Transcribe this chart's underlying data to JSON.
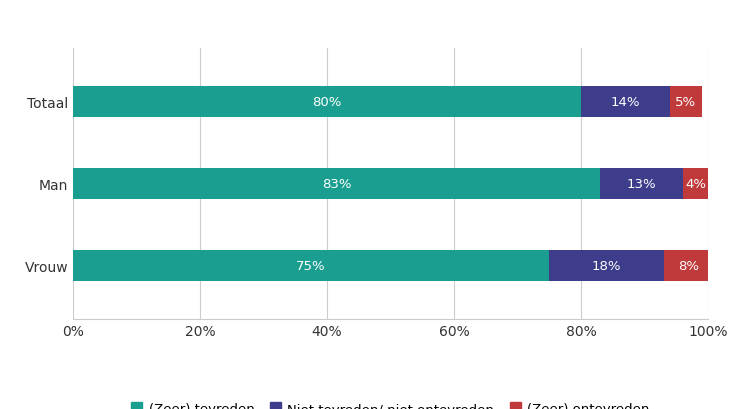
{
  "categories": [
    "Vrouw",
    "Man",
    "Totaal"
  ],
  "series": [
    {
      "label": "(Zeer) tevreden",
      "values": [
        75,
        83,
        80
      ],
      "color": "#1a9e8f"
    },
    {
      "label": "Niet tevreden/ niet ontevreden",
      "values": [
        18,
        13,
        14
      ],
      "color": "#3d3d8c"
    },
    {
      "label": "(Zeer) ontevreden",
      "values": [
        8,
        4,
        5
      ],
      "color": "#c0393b"
    }
  ],
  "xlim": [
    0,
    100
  ],
  "xtick_labels": [
    "0%",
    "20%",
    "40%",
    "60%",
    "80%",
    "100%"
  ],
  "xtick_values": [
    0,
    20,
    40,
    60,
    80,
    100
  ],
  "bar_height": 0.38,
  "label_fontsize": 9.5,
  "tick_fontsize": 10,
  "legend_fontsize": 9.5,
  "background_color": "#ffffff",
  "text_color": "#ffffff",
  "axis_label_color": "#333333",
  "grid_color": "#cccccc"
}
